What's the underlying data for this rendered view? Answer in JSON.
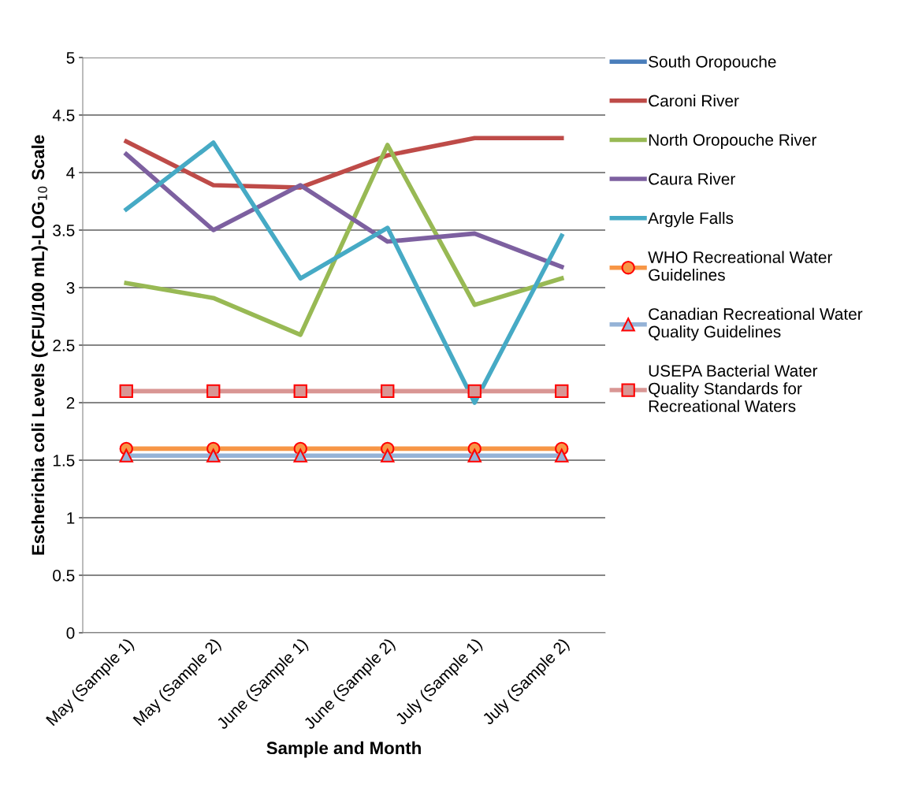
{
  "chart_data": {
    "type": "line",
    "xlabel": "Sample and Month",
    "ylabel": "Escherichia coli Levels (CFU/100 mL)-LOG$_{10}$ Scale",
    "categories": [
      "May (Sample 1)",
      "May (Sample 2)",
      "June (Sample 1)",
      "June (Sample 2)",
      "July (Sample 1)",
      "July (Sample 2)"
    ],
    "series": [
      {
        "name": "South Oropouche",
        "color": "#4a7ebb",
        "values": [
          null,
          null,
          null,
          null,
          null,
          null
        ],
        "marker": "none"
      },
      {
        "name": "Caroni River",
        "color": "#be4b48",
        "values": [
          4.27,
          3.89,
          3.87,
          4.15,
          4.3,
          4.3
        ],
        "marker": "none"
      },
      {
        "name": "North Oropouche River",
        "color": "#98b954",
        "values": [
          3.04,
          2.91,
          2.59,
          4.24,
          2.85,
          3.08
        ],
        "marker": "none"
      },
      {
        "name": "Caura River",
        "color": "#7d60a0",
        "values": [
          4.16,
          3.5,
          3.89,
          3.4,
          3.47,
          3.18
        ],
        "marker": "none"
      },
      {
        "name": "Argyle Falls",
        "color": "#46aac5",
        "values": [
          3.68,
          4.26,
          3.08,
          3.52,
          2.0,
          3.45
        ],
        "marker": "none"
      },
      {
        "name": "WHO Recreational Water\nGuidelines",
        "color": "#f79646",
        "values": [
          1.6,
          1.6,
          1.6,
          1.6,
          1.6,
          1.6
        ],
        "marker": "circle"
      },
      {
        "name": "Canadian Recreational Water\nQuality Guidelines",
        "color": "#95b3d7",
        "values": [
          1.54,
          1.54,
          1.54,
          1.54,
          1.54,
          1.54
        ],
        "marker": "triangle"
      },
      {
        "name": "USEPA Bacterial Water\nQuality Standards for\nRecreational Waters",
        "color": "#d99694",
        "values": [
          2.1,
          2.1,
          2.1,
          2.1,
          2.1,
          2.1
        ],
        "marker": "square"
      }
    ],
    "ylim": [
      0,
      5
    ],
    "yticks": [
      0,
      0.5,
      1,
      1.5,
      2,
      2.5,
      3,
      3.5,
      4,
      4.5,
      5
    ],
    "grid": "y",
    "legend": "right",
    "line_style": "solid"
  }
}
